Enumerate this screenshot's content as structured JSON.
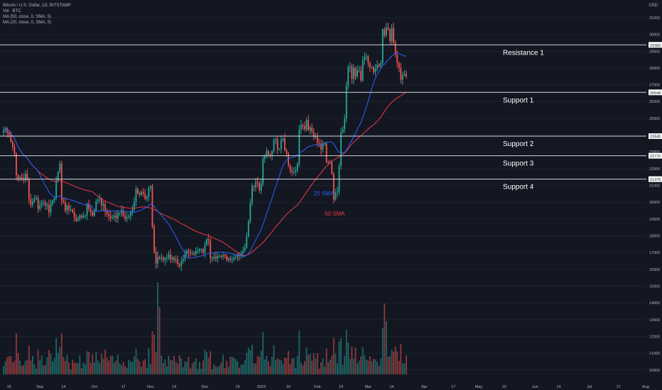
{
  "header": {
    "title": "Bitcoin / U.S. Dollar, 1D, BITSTAMP",
    "vol": "Vol · BTC",
    "ma50": "MA (50, close, 0, SMA, 5)",
    "ma20": "MA (20, close, 0, SMA, 5)",
    "currency": "USD"
  },
  "colors": {
    "background": "#131722",
    "up": "#26a69a",
    "down": "#ef5350",
    "sma20": "#2962ff",
    "sma50": "#f23645",
    "level_line": "#d1d4dc",
    "grid": "#1e222d",
    "axis_text": "#b2b5be"
  },
  "chart_data": {
    "type": "candlestick",
    "ylim": [
      9400,
      31800
    ],
    "y_ticks": [
      10000,
      11000,
      12000,
      13000,
      14000,
      15000,
      16000,
      17000,
      18000,
      19000,
      20000,
      21000,
      22000,
      23000,
      24000,
      25000,
      26000,
      27000,
      28000,
      29000,
      30000,
      31000
    ],
    "x_ticks": [
      "15",
      "Sep",
      "14",
      "Oct",
      "17",
      "Nov",
      "14",
      "Dec",
      "19",
      "2023",
      "16",
      "Feb",
      "14",
      "Mar",
      "14",
      "Apr",
      "17",
      "May",
      "15",
      "Jun",
      "14",
      "Jul",
      "17",
      "Aug"
    ],
    "x_range": [
      "2022-08-10",
      "2023-08-10"
    ],
    "levels": [
      {
        "name": "Resistance 1",
        "price": 29380,
        "tag": "29380"
      },
      {
        "name": "Support 1",
        "price": 26548,
        "tag": "26548"
      },
      {
        "name": "Support 2",
        "price": 23940,
        "tag": "23940"
      },
      {
        "name": "Support 3",
        "price": 22770,
        "tag": "22770"
      },
      {
        "name": "Support 4",
        "price": 21376,
        "tag": "21376"
      }
    ],
    "annotations": [
      {
        "text": "20 SMA",
        "date": "2023-01-30",
        "price": 20400
      },
      {
        "text": "50 SMA",
        "date": "2023-02-05",
        "price": 19200
      }
    ],
    "start_date": "2022-08-12",
    "closes": [
      24300,
      24400,
      24150,
      24000,
      23600,
      23300,
      22900,
      21600,
      21400,
      21500,
      21400,
      21300,
      21700,
      21400,
      20200,
      19850,
      20050,
      20200,
      20250,
      19600,
      19800,
      19950,
      20000,
      19800,
      19850,
      19400,
      19900,
      20100,
      20250,
      21300,
      21800,
      22300,
      20100,
      20000,
      19500,
      19800,
      19550,
      19550,
      19400,
      19100,
      18900,
      19000,
      19200,
      19100,
      19200,
      19200,
      19900,
      19600,
      19400,
      19200,
      19500,
      20050,
      20150,
      20200,
      19800,
      19900,
      19450,
      19300,
      19200,
      19050,
      19100,
      19200,
      19050,
      19350,
      19350,
      19500,
      19200,
      19000,
      19100,
      19150,
      19400,
      19550,
      20050,
      20800,
      20550,
      20450,
      20600,
      20500,
      20200,
      20300,
      20850,
      20950,
      18550,
      17050,
      16350,
      16750,
      16650,
      16700,
      16550,
      16650,
      16650,
      16900,
      16600,
      16700,
      16550,
      16600,
      16300,
      16200,
      16500,
      16600,
      16900,
      17100,
      17000,
      16950,
      16950,
      16900,
      17100,
      17100,
      17200,
      17200,
      17000,
      17450,
      17800,
      17700,
      16650,
      16650,
      16750,
      16650,
      16800,
      16800,
      16750,
      16850,
      16800,
      16550,
      16650,
      16550,
      16600,
      16700,
      16700,
      16850,
      16800,
      16950,
      17100,
      17300,
      17950,
      18850,
      19950,
      20950,
      20900,
      21200,
      21150,
      20700,
      21100,
      22600,
      22750,
      23050,
      22850,
      22800,
      23050,
      23700,
      23750,
      23150,
      23150,
      23700,
      23800,
      23100,
      22900,
      22200,
      21900,
      21800,
      21800,
      21900,
      22300,
      24350,
      24600,
      24550,
      24350,
      24900,
      24300,
      24450,
      24200,
      23900,
      23900,
      23550,
      23500,
      23150,
      23500,
      23500,
      22400,
      22350,
      22400,
      21700,
      20150,
      20600,
      20650,
      22150,
      24150,
      24350,
      25000,
      26950,
      28050,
      28100,
      27350,
      28000,
      27500,
      27850,
      27850,
      27250,
      28450,
      28650,
      28700,
      28300,
      28050,
      28050,
      27750,
      27950,
      28200,
      28100,
      28300,
      30300,
      29950,
      30400,
      30300,
      29600,
      30400,
      29500,
      28800,
      28300,
      28000,
      27300,
      27550,
      27650,
      27500
    ]
  }
}
